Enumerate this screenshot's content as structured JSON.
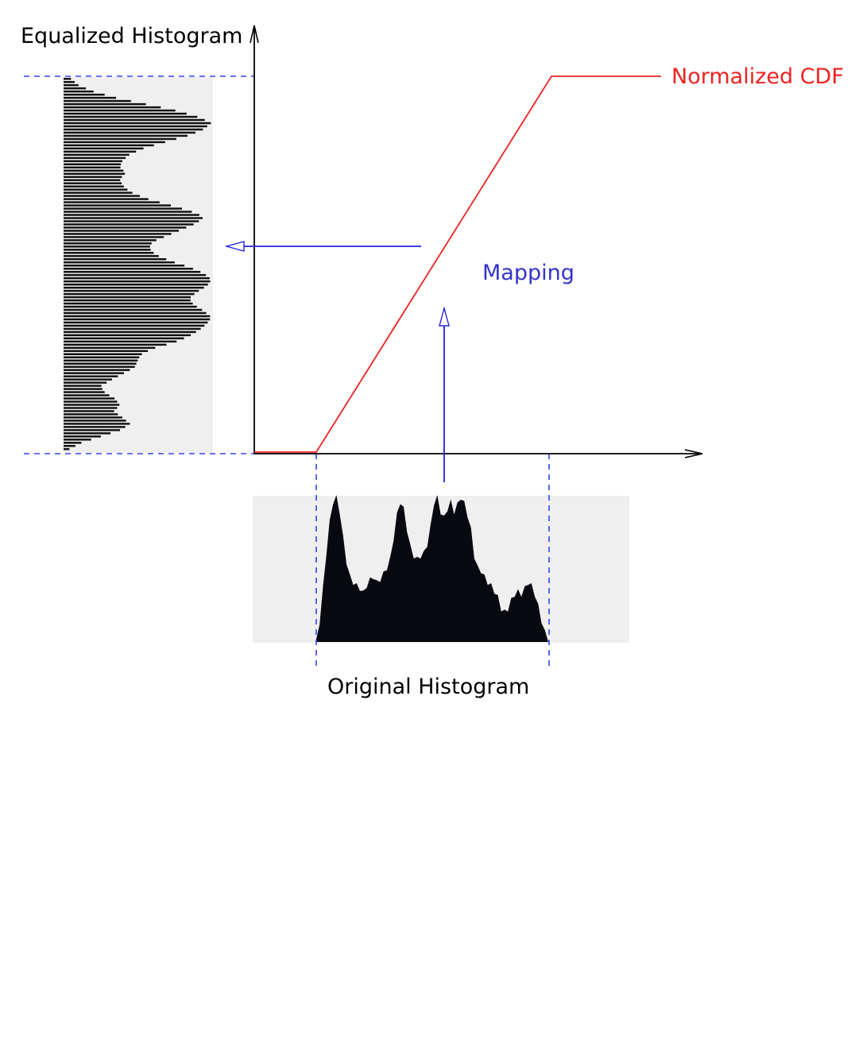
{
  "labels": {
    "equalized_histogram": "Equalized Histogram",
    "original_histogram": "Original Histogram",
    "normalized_cdf": "Normalized CDF",
    "mapping": "Mapping"
  },
  "colors": {
    "cdf": "#ee2222",
    "mapping": "#2222dd",
    "guide": "#3344ee",
    "axis": "#000000",
    "histogram_fill": "#080a10",
    "histogram_bg": "#efefef",
    "equalized_bar": "#111111"
  },
  "original_histogram_profile": [
    0.02,
    0.15,
    0.38,
    0.62,
    0.83,
    0.97,
    1.0,
    0.9,
    0.72,
    0.56,
    0.46,
    0.42,
    0.4,
    0.38,
    0.35,
    0.4,
    0.44,
    0.46,
    0.42,
    0.44,
    0.48,
    0.52,
    0.58,
    0.72,
    0.88,
    0.97,
    0.92,
    0.78,
    0.66,
    0.6,
    0.58,
    0.6,
    0.62,
    0.68,
    0.8,
    0.96,
    1.0,
    0.9,
    0.86,
    0.92,
    0.97,
    0.9,
    0.95,
    1.0,
    0.96,
    0.88,
    0.78,
    0.6,
    0.52,
    0.5,
    0.46,
    0.42,
    0.4,
    0.36,
    0.32,
    0.24,
    0.22,
    0.24,
    0.3,
    0.34,
    0.36,
    0.34,
    0.38,
    0.42,
    0.4,
    0.34,
    0.26,
    0.16,
    0.08,
    0.02
  ],
  "equalized_histogram_profile": [
    0.05,
    0.1,
    0.2,
    0.35,
    0.55,
    0.75,
    0.9,
    1.0,
    0.95,
    0.85,
    0.7,
    0.55,
    0.45,
    0.4,
    0.38,
    0.42,
    0.38,
    0.4,
    0.45,
    0.55,
    0.7,
    0.85,
    0.95,
    0.9,
    0.8,
    0.7,
    0.6,
    0.58,
    0.62,
    0.72,
    0.85,
    0.95,
    1.0,
    0.97,
    0.9,
    0.85,
    0.88,
    0.95,
    1.0,
    0.97,
    0.92,
    0.85,
    0.75,
    0.6,
    0.52,
    0.5,
    0.48,
    0.4,
    0.32,
    0.25,
    0.28,
    0.35,
    0.38,
    0.34,
    0.4,
    0.45,
    0.38,
    0.25,
    0.12,
    0.04
  ]
}
